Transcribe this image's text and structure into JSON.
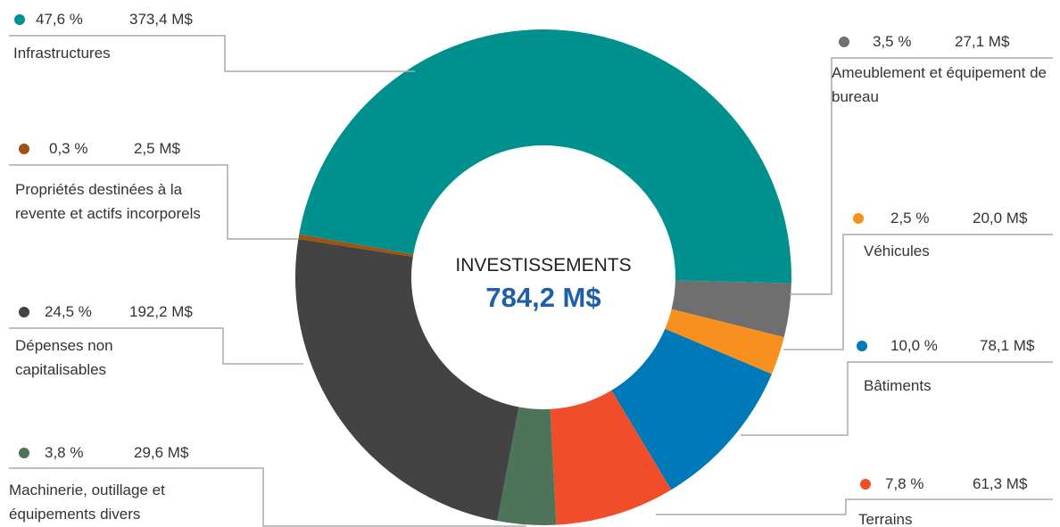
{
  "chart_data": {
    "type": "donut",
    "center_title": "INVESTISSEMENTS",
    "total_label": "784,2 M$",
    "categories": [
      "Infrastructures",
      "Ameublement et équipement de bureau",
      "Véhicules",
      "Bâtiments",
      "Terrains",
      "Machinerie, outillage et équipements divers",
      "Dépenses non capitalisables",
      "Propriétés destinées à la revente et actifs incorporels"
    ],
    "values": [
      47.6,
      3.5,
      2.5,
      10.0,
      7.8,
      3.8,
      24.5,
      0.3
    ],
    "value_labels": [
      "47,6 %",
      "3,5 %",
      "2,5 %",
      "10,0 %",
      "7,8 %",
      "3,8 %",
      "24,5 %",
      "0,3 %"
    ],
    "amounts": [
      373.4,
      27.1,
      20.0,
      78.1,
      61.3,
      29.6,
      192.2,
      2.5
    ],
    "amount_labels": [
      "373,4 M$",
      "27,1 M$",
      "20,0 M$",
      "78,1 M$",
      "61,3 M$",
      "29,6 M$",
      "192,2 M$",
      "2,5 M$"
    ],
    "colors": [
      "#00918f",
      "#6f6f6f",
      "#f7901e",
      "#0079b8",
      "#f04e2a",
      "#4d7358",
      "#434343",
      "#a0520f"
    ]
  }
}
